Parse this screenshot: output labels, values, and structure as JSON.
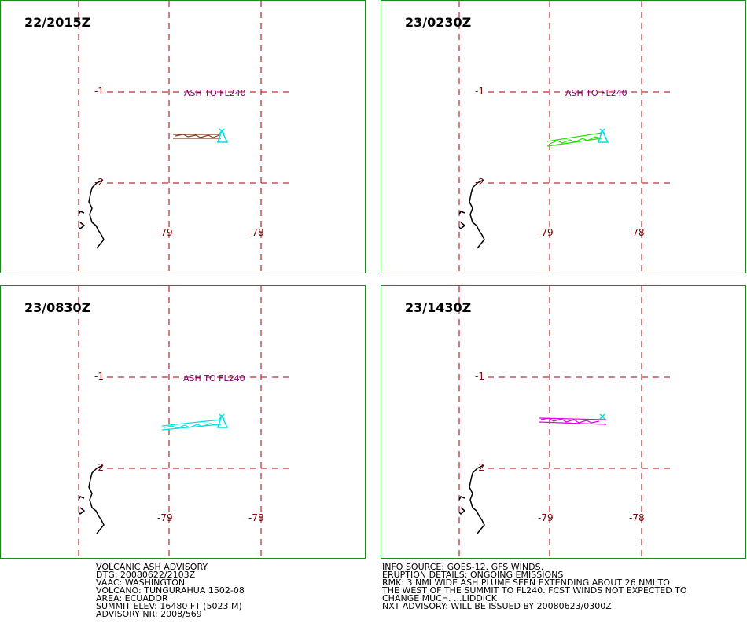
{
  "panels": [
    {
      "time": "22/2015Z",
      "ash_label": "ASH TO FL240",
      "plume_color": "#804020"
    },
    {
      "time": "23/0230Z",
      "ash_label": "ASH TO FL240",
      "plume_color": "#22dd00"
    },
    {
      "time": "23/0830Z",
      "ash_label": "ASH TO FL240",
      "plume_color": "#00e0e0"
    },
    {
      "time": "23/1430Z",
      "ash_label": "",
      "plume_color": "#e000e0"
    }
  ],
  "grid": {
    "lat_labels": [
      "-1",
      "-2"
    ],
    "lon_labels": [
      "-79",
      "-78"
    ]
  },
  "colors": {
    "panel_border": "#1a8a1a",
    "grid": "#a00000",
    "ash_label": "#800070",
    "volcano_marker": "#00e0e0",
    "coastline": "#000000"
  },
  "advisory": {
    "lines": [
      "VOLCANIC ASH ADVISORY",
      "DTG: 20080622/2103Z",
      "VAAC: WASHINGTON",
      "VOLCANO: TUNGURAHUA 1502-08",
      "AREA: ECUADOR",
      "SUMMIT ELEV: 16480 FT (5023 M)",
      "ADVISORY NR: 2008/569"
    ]
  },
  "remarks": {
    "lines": [
      "INFO SOURCE: GOES-12. GFS WINDS.",
      "ERUPTION DETAILS: ONGOING EMISSIONS",
      "RMK: 3 NMI WIDE ASH PLUME SEEN EXTENDING ABOUT 26 NMI TO",
      "THE WEST OF THE SUMMIT TO FL240. FCST WINDS NOT EXPECTED TO",
      "CHANGE MUCH. ...LIDDICK",
      "NXT ADVISORY: WILL BE ISSUED BY 20080623/0300Z"
    ]
  }
}
